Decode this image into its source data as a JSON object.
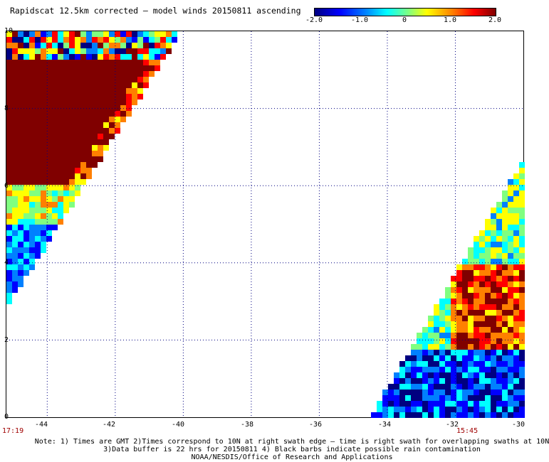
{
  "title": "Rapidscat 12.5km corrected – model winds 20150811 ascending",
  "colorbar": {
    "ticks": [
      "-2.0",
      "-1.0",
      "0",
      "1.0",
      "2.0"
    ],
    "colors": [
      "#000080",
      "#0000ff",
      "#0080ff",
      "#00ffff",
      "#80ff80",
      "#ffff00",
      "#ff8000",
      "#ff0000",
      "#800000"
    ]
  },
  "map": {
    "lon_range": [
      -45.2,
      -30
    ],
    "lat_range": [
      0,
      10
    ],
    "x_ticks": [
      "-44",
      "-42",
      "-40",
      "-38",
      "-36",
      "-34",
      "-32",
      "-30"
    ],
    "y_ticks": [
      "10",
      "8",
      "6",
      "4",
      "2",
      "0"
    ],
    "grid": "dotted",
    "swath_left_time": "17:19",
    "swath_right_time": "15:45"
  },
  "notes": [
    "Note: 1) Times are GMT 2)Times correspond to 10N at right swath edge – time is right swath for overlapping swaths at 10N",
    "3)Data buffer is 22 hrs for 20150811 4) Black barbs indicate possible rain contamination",
    "NOAA/NESDIS/Office of Research and Applications"
  ]
}
